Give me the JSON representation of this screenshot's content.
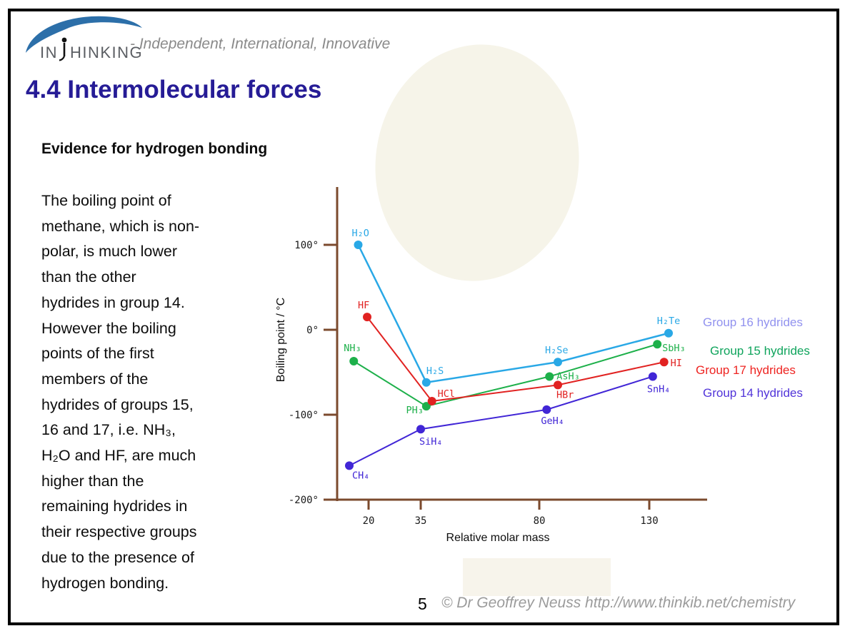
{
  "slide": {
    "logo": {
      "brand": "INTHINKING",
      "brand_prefix": "IN",
      "brand_suffix": "HINKING",
      "tagline": "- Independent, International, Innovative",
      "swoosh_color": "#2c6fa9"
    },
    "title": "4.4 Intermolecular forces",
    "title_color": "#261c96",
    "subtitle": "Evidence for hydrogen bonding",
    "body_lines": [
      "The boiling point of",
      "methane, which is non-",
      "polar, is much lower",
      "than the other",
      "hydrides in group 14.",
      "However the boiling",
      "points of the first",
      "members of the",
      "hydrides of groups 15,",
      "16 and 17, i.e. NH₃,",
      "H₂O and HF, are much",
      "higher than the",
      "remaining hydrides in",
      "their respective groups",
      "due to the presence of",
      "hydrogen bonding."
    ],
    "page_number": "5",
    "copyright": "© Dr Geoffrey Neuss http://www.thinkib.net/chemistry"
  },
  "chart_data": {
    "type": "line",
    "title": "",
    "xlabel": "Relative molar mass",
    "ylabel": "Boiling point / °C",
    "axis_color": "#7b4a2d",
    "grid": false,
    "legend_position": "right",
    "xlim": [
      0,
      145
    ],
    "ylim": [
      -200,
      165
    ],
    "x_ticks": [
      {
        "label": "20",
        "value": 20
      },
      {
        "label": "35",
        "value": 35
      },
      {
        "label": "80",
        "value": 80
      },
      {
        "label": "130",
        "value": 130
      }
    ],
    "y_ticks": [
      {
        "label": "100°",
        "value": 100
      },
      {
        "label": "0°",
        "value": 0
      },
      {
        "label": "-100°",
        "value": -100
      },
      {
        "label": "-200°",
        "value": -200
      }
    ],
    "series": [
      {
        "name": "Group 16 hydrides",
        "color": "#29a8e6",
        "legend_color": "#9192ef",
        "points": [
          {
            "label": "H₂O",
            "molar_mass": 18,
            "boiling_point_c": 100
          },
          {
            "label": "H₂S",
            "molar_mass": 34,
            "boiling_point_c": -62
          },
          {
            "label": "H₂Se",
            "molar_mass": 81,
            "boiling_point_c": -38
          },
          {
            "label": "H₂Te",
            "molar_mass": 130,
            "boiling_point_c": -4
          }
        ]
      },
      {
        "name": "Group 15 hydrides",
        "color": "#1db04a",
        "legend_color": "#0fa45c",
        "points": [
          {
            "label": "NH₃",
            "molar_mass": 17,
            "boiling_point_c": -37
          },
          {
            "label": "PH₃",
            "molar_mass": 34,
            "boiling_point_c": -90
          },
          {
            "label": "AsH₃",
            "molar_mass": 78,
            "boiling_point_c": -55
          },
          {
            "label": "SbH₃",
            "molar_mass": 125,
            "boiling_point_c": -17
          }
        ]
      },
      {
        "name": "Group 17 hydrides",
        "color": "#e12221",
        "legend_color": "#ee2421",
        "points": [
          {
            "label": "HF",
            "molar_mass": 20,
            "boiling_point_c": 15
          },
          {
            "label": "HCl",
            "molar_mass": 36,
            "boiling_point_c": -84
          },
          {
            "label": "HBr",
            "molar_mass": 81,
            "boiling_point_c": -65
          },
          {
            "label": "HI",
            "molar_mass": 128,
            "boiling_point_c": -38
          }
        ]
      },
      {
        "name": "Group 14 hydrides",
        "color": "#4126d6",
        "legend_color": "#5134d9",
        "points": [
          {
            "label": "CH₄",
            "molar_mass": 16,
            "boiling_point_c": -160
          },
          {
            "label": "SiH₄",
            "molar_mass": 32,
            "boiling_point_c": -117
          },
          {
            "label": "GeH₄",
            "molar_mass": 77,
            "boiling_point_c": -94
          },
          {
            "label": "SnH₄",
            "molar_mass": 123,
            "boiling_point_c": -55
          }
        ]
      }
    ]
  }
}
